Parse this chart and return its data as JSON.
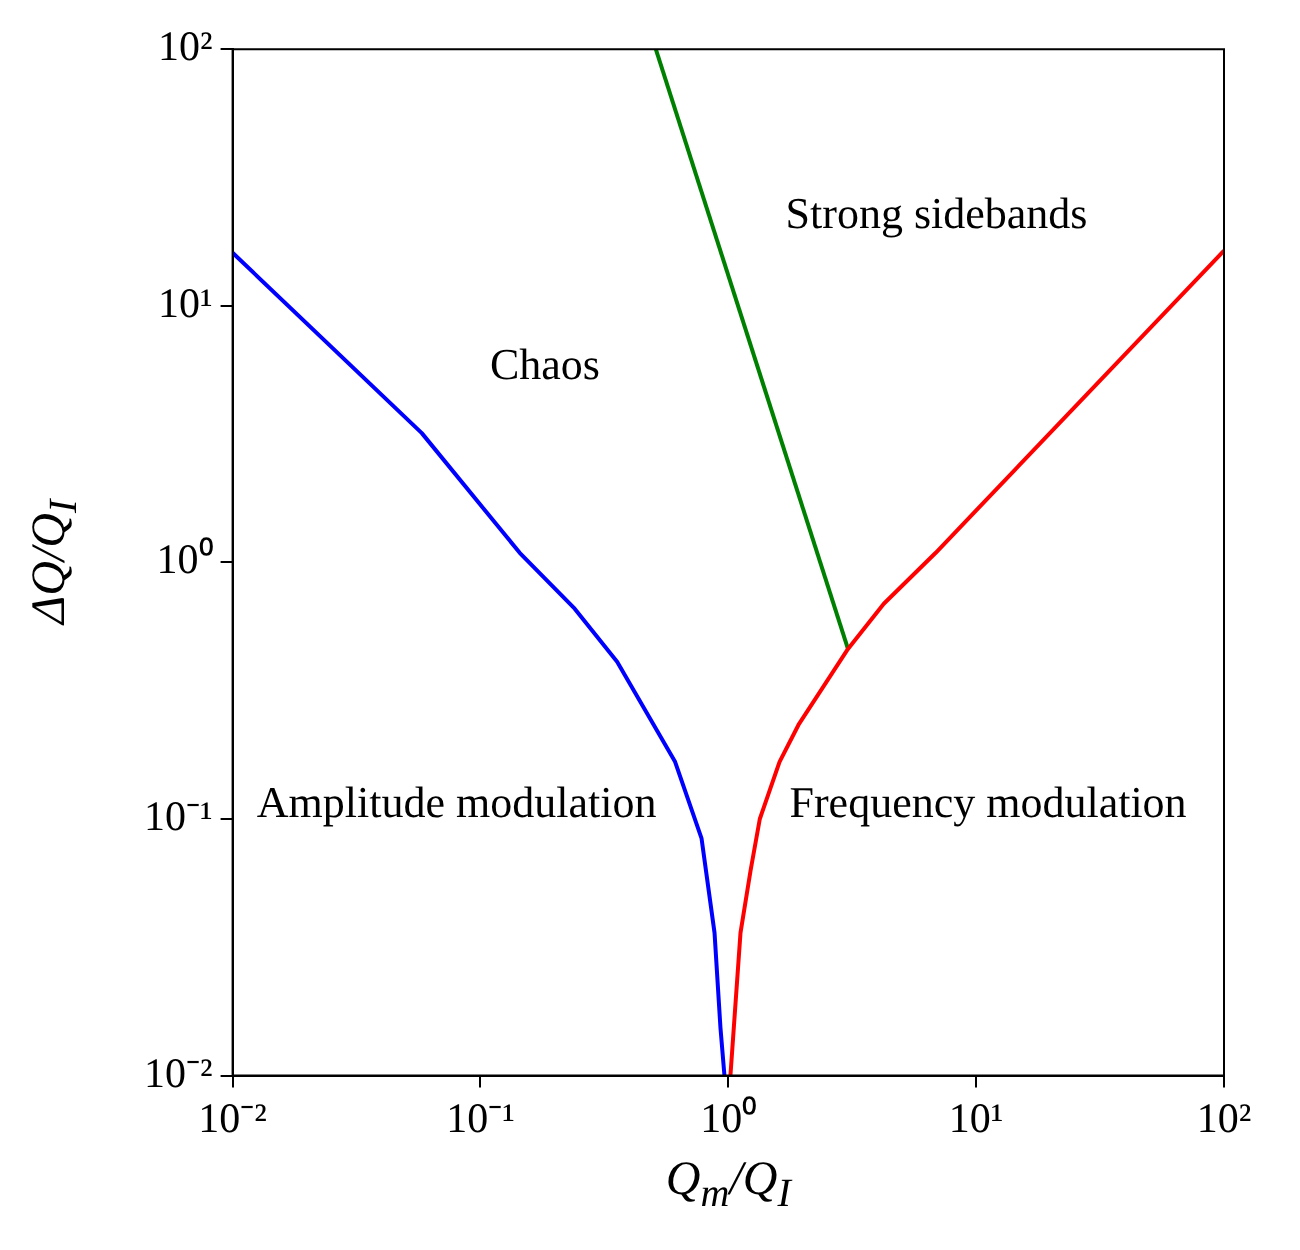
{
  "chart_data": {
    "type": "line",
    "xlabel": "Q$_{m}$/Q$_{I}$",
    "ylabel": "ΔQ/Q$_{I}$",
    "log": "xy",
    "grid": false,
    "legend": false,
    "marker": "none",
    "line_style": "solid",
    "xlim": [
      0.01,
      100
    ],
    "ylim": [
      0.01,
      100
    ],
    "xticks": [
      {
        "value": 0.01,
        "label": "10⁻²"
      },
      {
        "value": 0.1,
        "label": "10⁻¹"
      },
      {
        "value": 1,
        "label": "10⁰"
      },
      {
        "value": 10,
        "label": "10¹"
      },
      {
        "value": 100,
        "label": "10²"
      }
    ],
    "yticks": [
      {
        "value": 0.01,
        "label": "10⁻²"
      },
      {
        "value": 0.1,
        "label": "10⁻¹"
      },
      {
        "value": 1,
        "label": "10⁰"
      },
      {
        "value": 10,
        "label": "10¹"
      },
      {
        "value": 100,
        "label": "10²"
      }
    ],
    "series": [
      {
        "color": "#0000ff",
        "x": [
          0.01,
          0.058,
          0.144,
          0.24,
          0.356,
          0.61,
          0.78,
          0.88,
          0.93,
          0.965
        ],
        "values": [
          16.1,
          3.19,
          1.09,
          0.66,
          0.41,
          0.167,
          0.084,
          0.036,
          0.0153,
          0.01
        ]
      },
      {
        "color": "#ff0000",
        "x": [
          1.02,
          1.12,
          1.23,
          1.34,
          1.61,
          1.93,
          3.04,
          4.24,
          6.87,
          100
        ],
        "values": [
          0.01,
          0.036,
          0.063,
          0.1,
          0.167,
          0.235,
          0.46,
          0.69,
          1.09,
          16.4
        ]
      },
      {
        "color": "#008000",
        "x": [
          0.51,
          3.04
        ],
        "values": [
          100,
          0.46
        ]
      }
    ],
    "annotations": [
      "Chaos",
      "Strong sidebands",
      "Amplitude modulation",
      "Frequency modulation"
    ]
  }
}
